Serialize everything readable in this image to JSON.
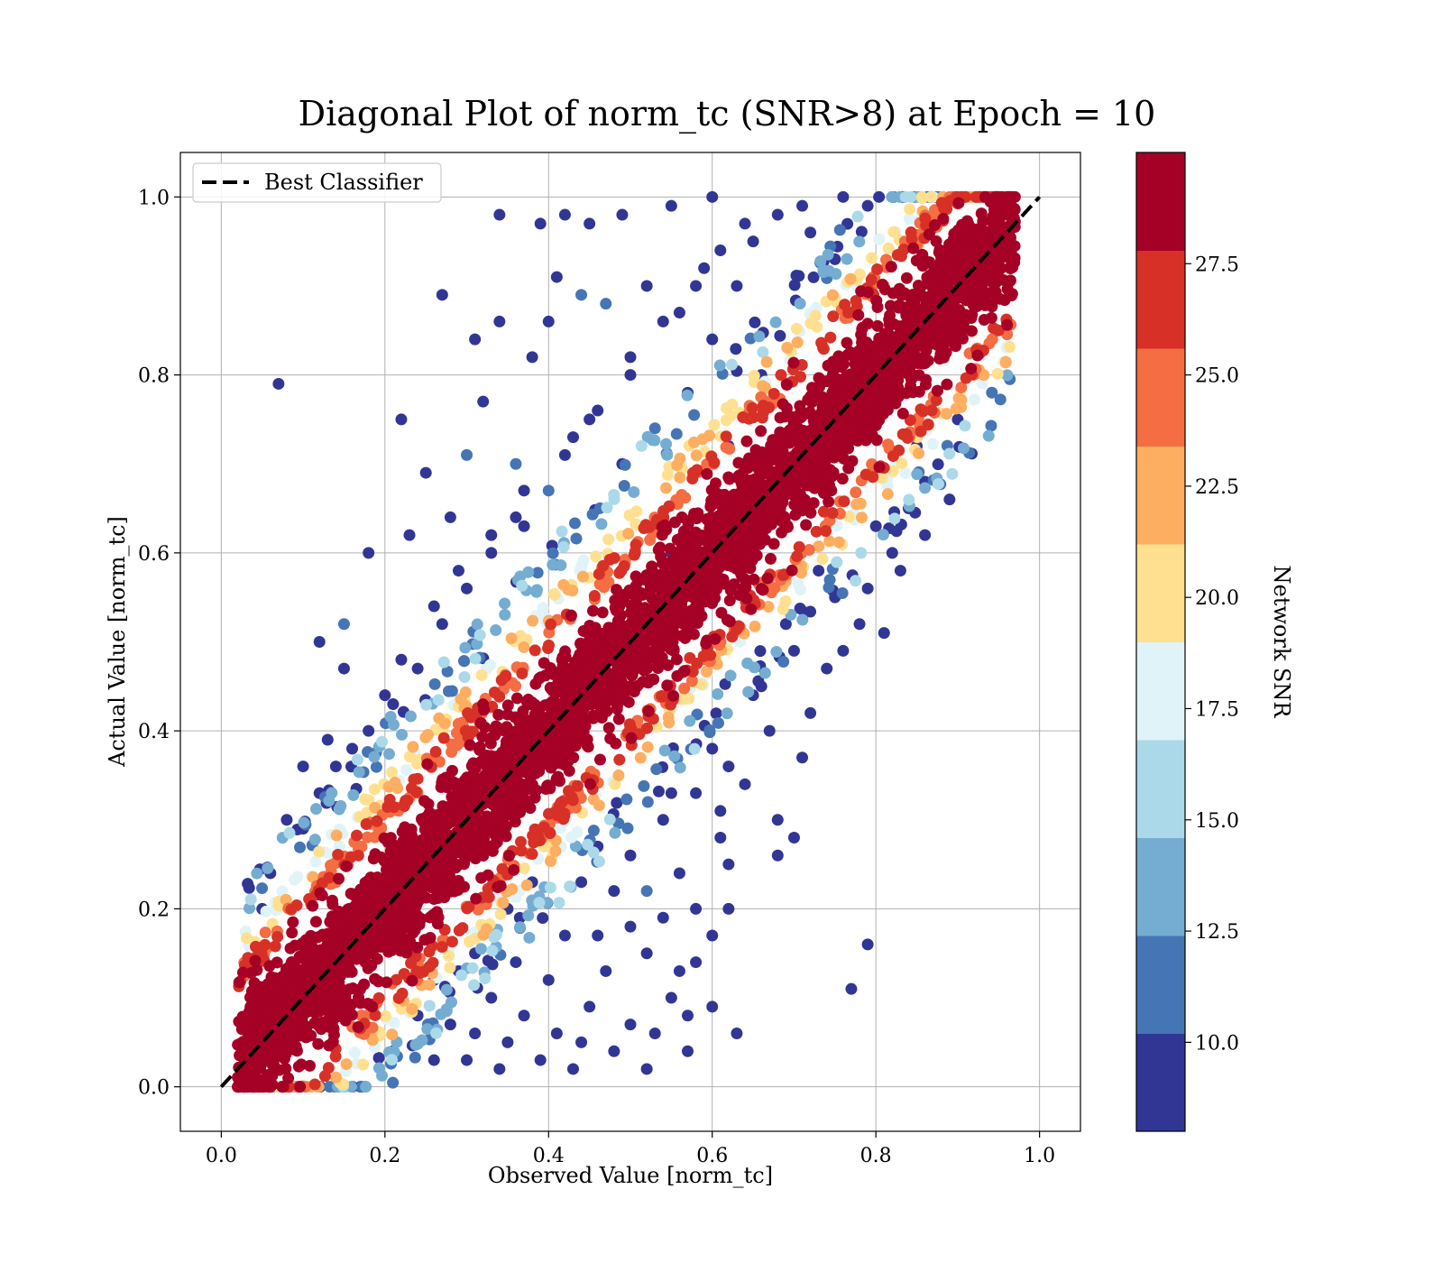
{
  "chart_data": {
    "type": "scatter",
    "title": "Diagonal Plot of norm_tc (SNR>8) at Epoch = 10",
    "xlabel": "Observed Value [norm_tc]",
    "ylabel": "Actual Value [norm_tc]",
    "xlim": [
      -0.05,
      1.05
    ],
    "ylim": [
      -0.05,
      1.05
    ],
    "x_ticks": [
      "0.0",
      "0.2",
      "0.4",
      "0.6",
      "0.8",
      "1.0"
    ],
    "y_ticks": [
      "0.0",
      "0.2",
      "0.4",
      "0.6",
      "0.8",
      "1.0"
    ],
    "grid": true,
    "legend": {
      "position": "upper-left",
      "entries": [
        "Best Classifier"
      ]
    },
    "reference_line": {
      "label": "Best Classifier",
      "x": [
        0.0,
        1.0
      ],
      "y": [
        0.0,
        1.0
      ],
      "style": "dashed",
      "color": "#000000"
    },
    "colorbar": {
      "label": "Network SNR",
      "min": 8.0,
      "max": 30.0,
      "ticks": [
        "10.0",
        "12.5",
        "15.0",
        "17.5",
        "20.0",
        "22.5",
        "25.0",
        "27.5"
      ],
      "tick_values": [
        10.0,
        12.5,
        15.0,
        17.5,
        20.0,
        22.5,
        25.0,
        27.5
      ],
      "bins": 10,
      "colors": [
        "#313695",
        "#4575b4",
        "#74add1",
        "#abd9e9",
        "#e0f3f8",
        "#fee090",
        "#fdae61",
        "#f46d43",
        "#d73027",
        "#a50026"
      ]
    },
    "series": [
      {
        "points": [
          [
            0.07,
            0.79
          ],
          [
            0.34,
            0.98
          ],
          [
            0.39,
            0.97
          ],
          [
            0.27,
            0.89
          ],
          [
            0.22,
            0.75
          ],
          [
            0.12,
            0.5
          ],
          [
            0.15,
            0.52
          ],
          [
            0.18,
            0.6
          ],
          [
            0.23,
            0.62
          ],
          [
            0.25,
            0.69
          ],
          [
            0.3,
            0.71
          ],
          [
            0.32,
            0.77
          ],
          [
            0.36,
            0.64
          ],
          [
            0.42,
            0.98
          ],
          [
            0.45,
            0.97
          ],
          [
            0.49,
            0.98
          ],
          [
            0.55,
            0.99
          ],
          [
            0.6,
            1.0
          ],
          [
            0.38,
            0.82
          ],
          [
            0.4,
            0.86
          ],
          [
            0.44,
            0.89
          ],
          [
            0.34,
            0.86
          ],
          [
            0.31,
            0.84
          ],
          [
            0.41,
            0.91
          ],
          [
            0.47,
            0.88
          ],
          [
            0.52,
            0.9
          ],
          [
            0.46,
            0.76
          ],
          [
            0.5,
            0.8
          ],
          [
            0.3,
            0.56
          ],
          [
            0.27,
            0.52
          ],
          [
            0.33,
            0.6
          ],
          [
            0.37,
            0.63
          ],
          [
            0.21,
            0.43
          ],
          [
            0.18,
            0.4
          ],
          [
            0.24,
            0.47
          ],
          [
            0.49,
            0.7
          ],
          [
            0.53,
            0.74
          ],
          [
            0.57,
            0.78
          ],
          [
            0.6,
            0.84
          ],
          [
            0.63,
            0.9
          ],
          [
            0.65,
            0.95
          ],
          [
            0.68,
            0.98
          ],
          [
            0.43,
            0.73
          ],
          [
            0.4,
            0.67
          ],
          [
            0.36,
            0.7
          ],
          [
            0.28,
            0.64
          ],
          [
            0.15,
            0.47
          ],
          [
            0.1,
            0.36
          ],
          [
            0.13,
            0.39
          ],
          [
            0.56,
            0.87
          ],
          [
            0.59,
            0.92
          ],
          [
            0.72,
            0.96
          ],
          [
            0.75,
            0.93
          ],
          [
            0.79,
            0.99
          ],
          [
            0.62,
            0.72
          ],
          [
            0.66,
            0.8
          ],
          [
            0.79,
            0.16
          ],
          [
            0.77,
            0.11
          ],
          [
            0.68,
            0.3
          ],
          [
            0.7,
            0.28
          ],
          [
            0.68,
            0.26
          ],
          [
            0.64,
            0.34
          ],
          [
            0.61,
            0.28
          ],
          [
            0.62,
            0.25
          ],
          [
            0.61,
            0.31
          ],
          [
            0.56,
            0.24
          ],
          [
            0.56,
            0.13
          ],
          [
            0.55,
            0.1
          ],
          [
            0.57,
            0.08
          ],
          [
            0.53,
            0.06
          ],
          [
            0.5,
            0.07
          ],
          [
            0.48,
            0.04
          ],
          [
            0.44,
            0.05
          ],
          [
            0.45,
            0.09
          ],
          [
            0.41,
            0.06
          ],
          [
            0.39,
            0.03
          ],
          [
            0.43,
            0.02
          ],
          [
            0.47,
            0.13
          ],
          [
            0.5,
            0.18
          ],
          [
            0.52,
            0.15
          ],
          [
            0.54,
            0.19
          ],
          [
            0.52,
            0.22
          ],
          [
            0.58,
            0.2
          ],
          [
            0.5,
            0.26
          ],
          [
            0.48,
            0.22
          ],
          [
            0.46,
            0.17
          ],
          [
            0.4,
            0.12
          ],
          [
            0.37,
            0.08
          ],
          [
            0.35,
            0.05
          ],
          [
            0.33,
            0.1
          ],
          [
            0.3,
            0.03
          ],
          [
            0.28,
            0.07
          ],
          [
            0.26,
            0.12
          ],
          [
            0.31,
            0.15
          ],
          [
            0.36,
            0.14
          ],
          [
            0.42,
            0.17
          ],
          [
            0.44,
            0.23
          ],
          [
            0.46,
            0.27
          ],
          [
            0.62,
            0.36
          ],
          [
            0.65,
            0.44
          ],
          [
            0.7,
            0.49
          ],
          [
            0.75,
            0.55
          ],
          [
            0.79,
            0.56
          ],
          [
            0.83,
            0.58
          ],
          [
            0.86,
            0.62
          ],
          [
            0.81,
            0.51
          ],
          [
            0.76,
            0.49
          ],
          [
            0.72,
            0.42
          ],
          [
            0.67,
            0.4
          ],
          [
            0.6,
            0.38
          ],
          [
            0.58,
            0.33
          ],
          [
            0.54,
            0.3
          ],
          [
            0.6,
            0.17
          ],
          [
            0.62,
            0.2
          ],
          [
            0.58,
            0.14
          ],
          [
            0.6,
            0.09
          ],
          [
            0.63,
            0.06
          ],
          [
            0.57,
            0.04
          ],
          [
            0.52,
            0.02
          ],
          [
            0.89,
            0.66
          ],
          [
            0.84,
            0.65
          ],
          [
            0.86,
            0.68
          ],
          [
            0.82,
            0.6
          ],
          [
            0.78,
            0.52
          ],
          [
            0.74,
            0.47
          ],
          [
            0.71,
            0.37
          ],
          [
            0.12,
            0.33
          ],
          [
            0.08,
            0.3
          ],
          [
            0.06,
            0.24
          ],
          [
            0.05,
            0.2
          ],
          [
            0.1,
            0.29
          ],
          [
            0.14,
            0.36
          ],
          [
            0.16,
            0.38
          ],
          [
            0.2,
            0.44
          ],
          [
            0.22,
            0.48
          ],
          [
            0.26,
            0.54
          ],
          [
            0.29,
            0.58
          ],
          [
            0.33,
            0.62
          ],
          [
            0.37,
            0.67
          ],
          [
            0.42,
            0.71
          ],
          [
            0.45,
            0.75
          ],
          [
            0.5,
            0.82
          ],
          [
            0.54,
            0.86
          ],
          [
            0.58,
            0.9
          ],
          [
            0.61,
            0.94
          ],
          [
            0.64,
            0.97
          ],
          [
            0.71,
            0.99
          ],
          [
            0.76,
            1.0
          ],
          [
            0.82,
            1.0
          ],
          [
            0.55,
            0.6
          ],
          [
            0.35,
            0.2
          ],
          [
            0.38,
            0.23
          ],
          [
            0.32,
            0.18
          ],
          [
            0.29,
            0.13
          ],
          [
            0.24,
            0.08
          ],
          [
            0.21,
            0.04
          ],
          [
            0.26,
            0.03
          ],
          [
            0.34,
            0.02
          ],
          [
            0.31,
            0.06
          ],
          [
            0.55,
            0.33
          ],
          [
            0.66,
            0.45
          ],
          [
            0.69,
            0.52
          ],
          [
            0.73,
            0.58
          ],
          [
            0.8,
            0.63
          ],
          [
            0.85,
            0.72
          ],
          [
            0.9,
            0.75
          ],
          [
            0.93,
            0.8
          ],
          [
            0.96,
            0.86
          ]
        ],
        "snr": [
          9,
          9,
          9,
          9,
          9,
          9,
          11,
          9,
          10,
          9,
          12,
          9,
          9,
          9,
          9,
          9,
          9,
          9,
          9,
          9,
          11,
          9,
          9,
          9,
          12,
          9,
          9,
          9,
          9,
          9,
          9,
          9,
          9,
          9,
          9,
          9,
          11,
          9,
          9,
          9,
          10,
          9,
          9,
          12,
          11,
          9,
          10,
          9,
          9,
          9,
          9,
          9,
          10,
          9,
          9,
          9,
          9,
          9,
          9,
          9,
          10,
          9,
          9,
          9,
          9,
          9,
          9,
          9,
          9,
          9,
          9,
          9,
          9,
          9,
          9,
          9,
          9,
          9,
          9,
          9,
          9,
          11,
          9,
          9,
          9,
          9,
          9,
          9,
          9,
          9,
          9,
          9,
          9,
          9,
          9,
          9,
          9,
          9,
          9,
          9,
          9,
          9,
          9,
          9,
          9,
          9,
          9,
          9,
          9,
          9,
          9,
          9,
          9,
          9,
          9,
          9,
          9,
          9,
          9,
          9,
          9,
          9,
          9,
          9,
          9,
          9,
          9,
          9,
          9,
          9,
          9,
          9,
          9,
          9,
          9,
          9,
          9,
          9,
          9,
          9,
          9,
          9,
          9,
          9,
          9,
          9,
          9,
          9,
          9,
          9,
          9,
          9,
          9,
          9,
          9,
          9,
          9,
          9,
          9,
          9,
          9,
          9,
          9,
          9
        ],
        "band": {
          "description_values": "dense scatter along y = x",
          "x_range": [
            0.02,
            0.97
          ],
          "count": 5200,
          "inner_halfwidth_snr_high": 0.09,
          "mid_halfwidth": 0.12,
          "outer_halfwidth": 0.16
        }
      }
    ]
  }
}
